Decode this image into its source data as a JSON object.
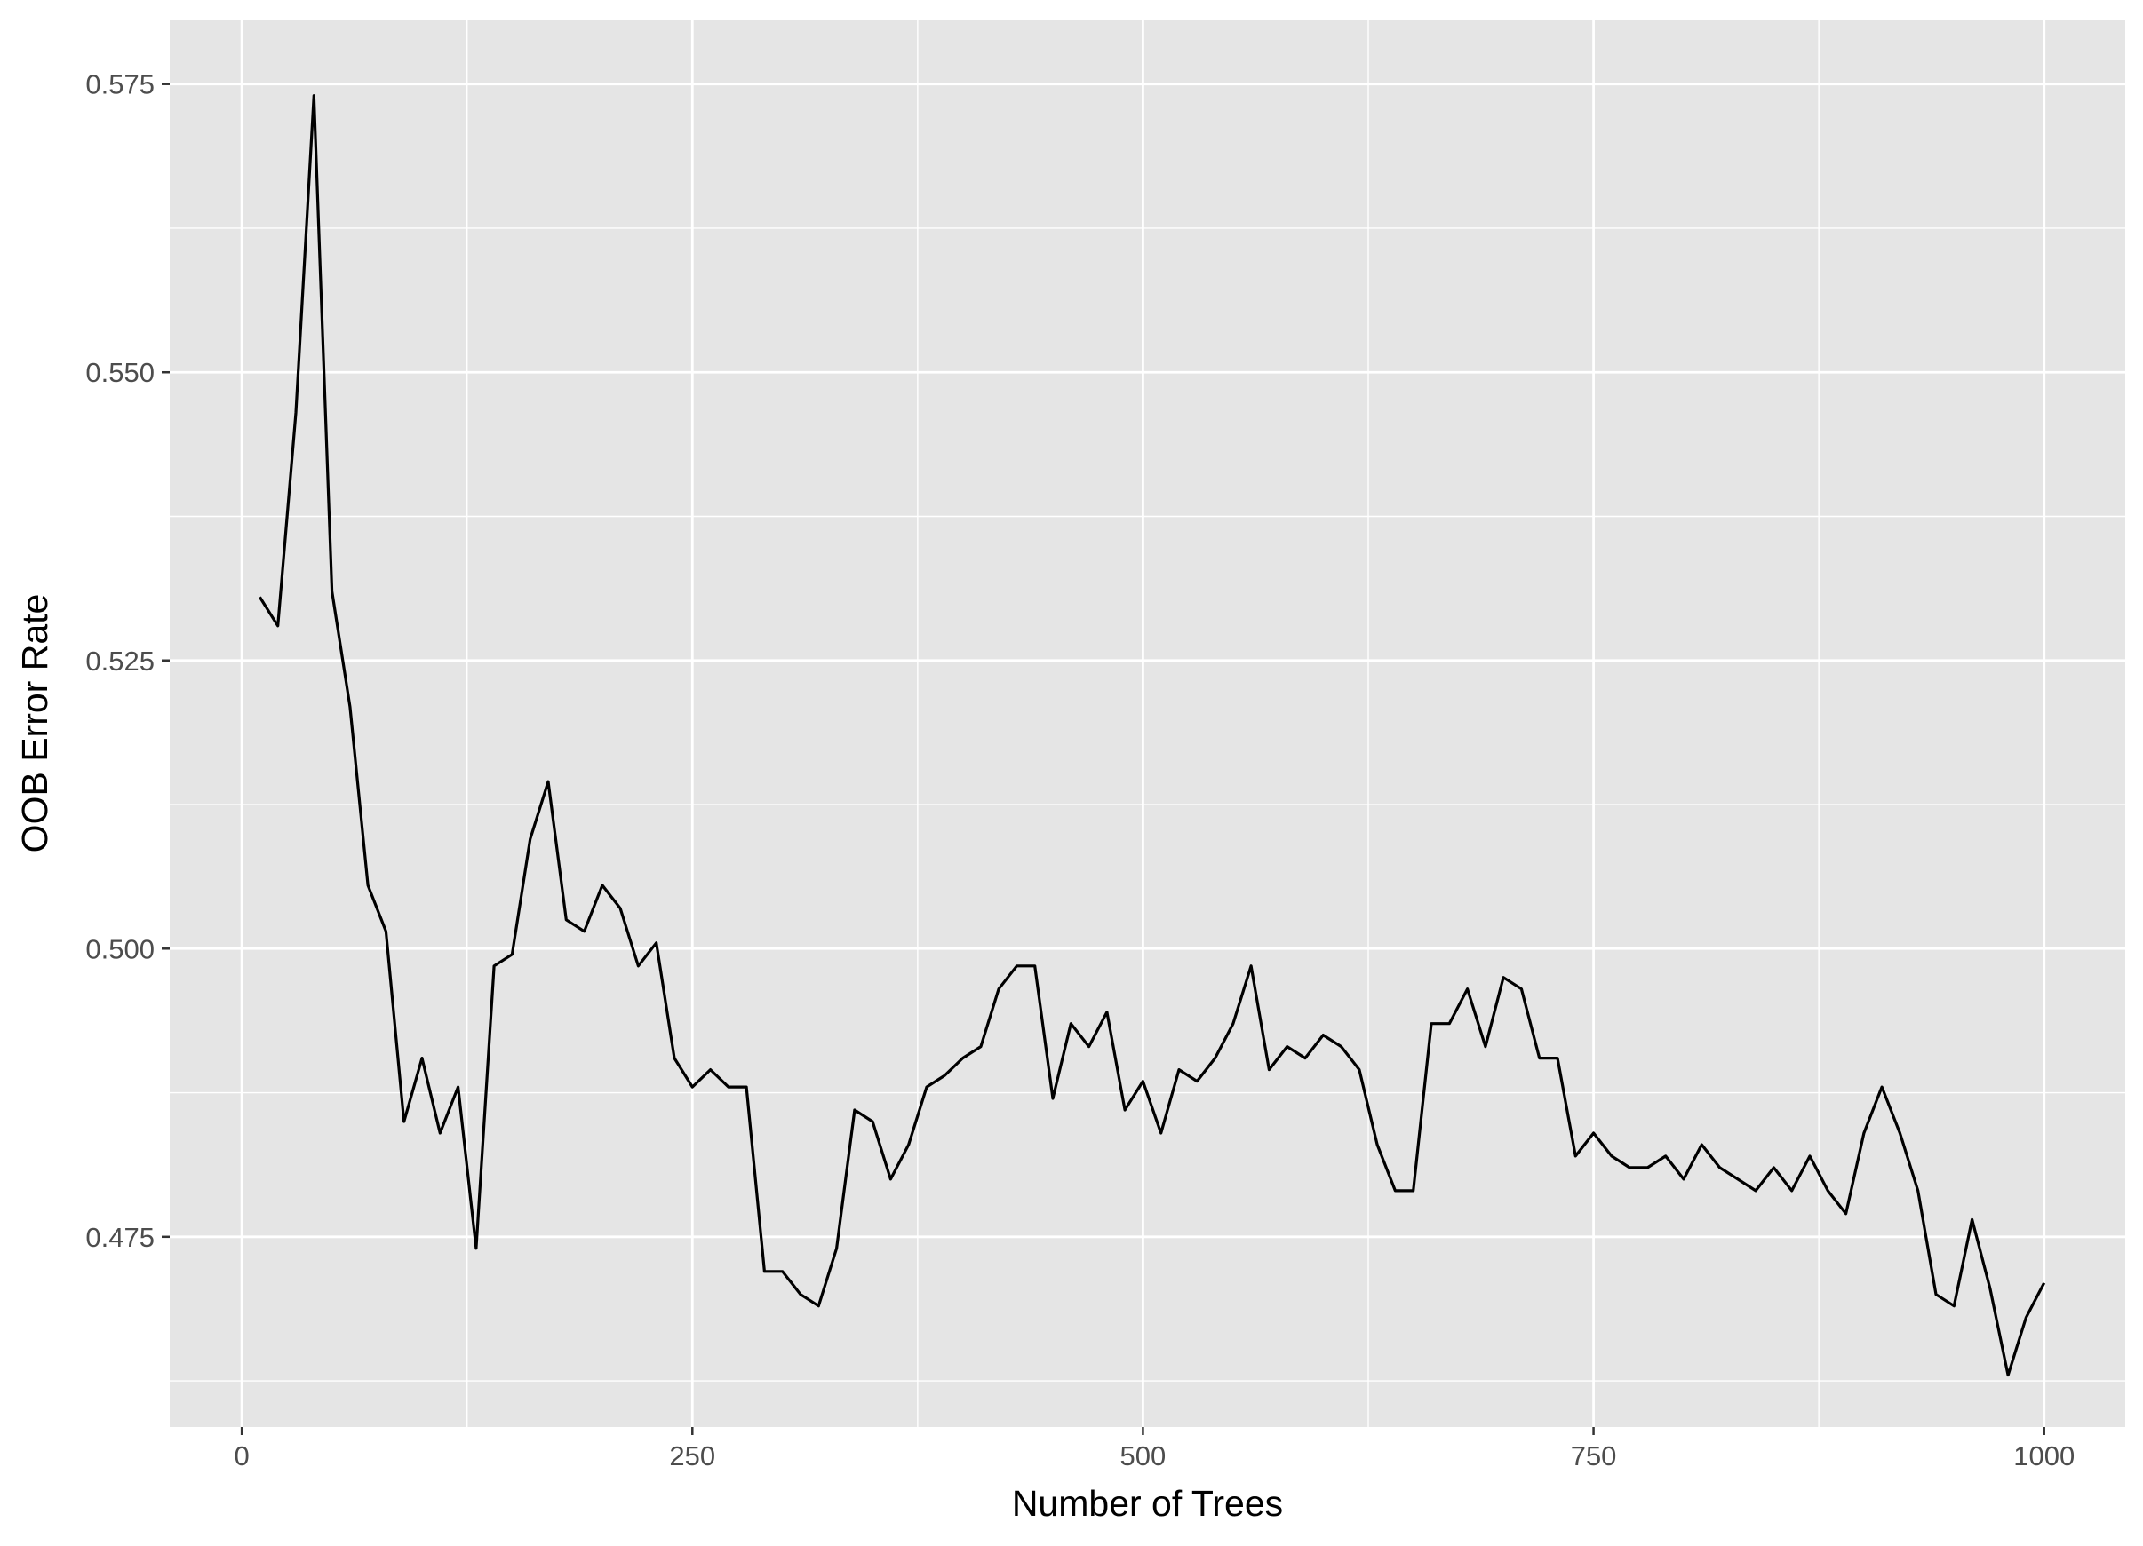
{
  "chart_data": {
    "type": "line",
    "title": "",
    "xlabel": "Number of Trees",
    "ylabel": "OOB Error Rate",
    "xlim": [
      -40,
      1045
    ],
    "ylim": [
      0.4585,
      0.5806
    ],
    "x_ticks": [
      0,
      250,
      500,
      750,
      1000
    ],
    "x_tick_labels": [
      "0",
      "250",
      "500",
      "750",
      "1000"
    ],
    "y_ticks": [
      0.475,
      0.5,
      0.525,
      0.55,
      0.575
    ],
    "y_tick_labels": [
      "0.475",
      "0.500",
      "0.525",
      "0.550",
      "0.575"
    ],
    "grid": true,
    "colors": {
      "panel_background": "#e5e5e5",
      "grid_line": "#ffffff",
      "series_line": "#000000",
      "tick_text": "#4d4d4d",
      "axis_title": "#000000"
    },
    "series": [
      {
        "x": [
          10,
          20,
          30,
          40,
          50,
          60,
          70,
          80,
          90,
          100,
          110,
          120,
          130,
          140,
          150,
          160,
          170,
          180,
          190,
          200,
          210,
          220,
          230,
          240,
          250,
          260,
          270,
          280,
          290,
          300,
          310,
          320,
          330,
          340,
          350,
          360,
          370,
          380,
          390,
          400,
          410,
          420,
          430,
          440,
          450,
          460,
          470,
          480,
          490,
          500,
          510,
          520,
          530,
          540,
          550,
          560,
          570,
          580,
          590,
          600,
          610,
          620,
          630,
          640,
          650,
          660,
          670,
          680,
          690,
          700,
          710,
          720,
          730,
          740,
          750,
          760,
          770,
          780,
          790,
          800,
          810,
          820,
          830,
          840,
          850,
          860,
          870,
          880,
          890,
          900,
          910,
          920,
          930,
          940,
          950,
          960,
          970,
          980,
          990,
          1000
        ],
        "values": [
          0.5305,
          0.528,
          0.5465,
          0.574,
          0.531,
          0.521,
          0.5055,
          0.5015,
          0.485,
          0.4905,
          0.484,
          0.488,
          0.474,
          0.4985,
          0.4995,
          0.5095,
          0.5145,
          0.5025,
          0.5015,
          0.5055,
          0.5035,
          0.4985,
          0.5005,
          0.4905,
          0.488,
          0.4895,
          0.488,
          0.488,
          0.472,
          0.472,
          0.47,
          0.469,
          0.474,
          0.486,
          0.485,
          0.48,
          0.483,
          0.488,
          0.489,
          0.4905,
          0.4915,
          0.4965,
          0.4985,
          0.4985,
          0.487,
          0.4935,
          0.4915,
          0.4945,
          0.486,
          0.4885,
          0.484,
          0.4895,
          0.4885,
          0.4905,
          0.4935,
          0.4985,
          0.4895,
          0.4915,
          0.4905,
          0.4925,
          0.4915,
          0.4895,
          0.483,
          0.479,
          0.479,
          0.4935,
          0.4935,
          0.4965,
          0.4915,
          0.4975,
          0.4965,
          0.4905,
          0.4905,
          0.482,
          0.484,
          0.482,
          0.481,
          0.481,
          0.482,
          0.48,
          0.483,
          0.481,
          0.48,
          0.479,
          0.481,
          0.479,
          0.482,
          0.479,
          0.477,
          0.484,
          0.488,
          0.484,
          0.479,
          0.47,
          0.469,
          0.4765,
          0.4705,
          0.463,
          0.468,
          0.471
        ]
      }
    ]
  }
}
